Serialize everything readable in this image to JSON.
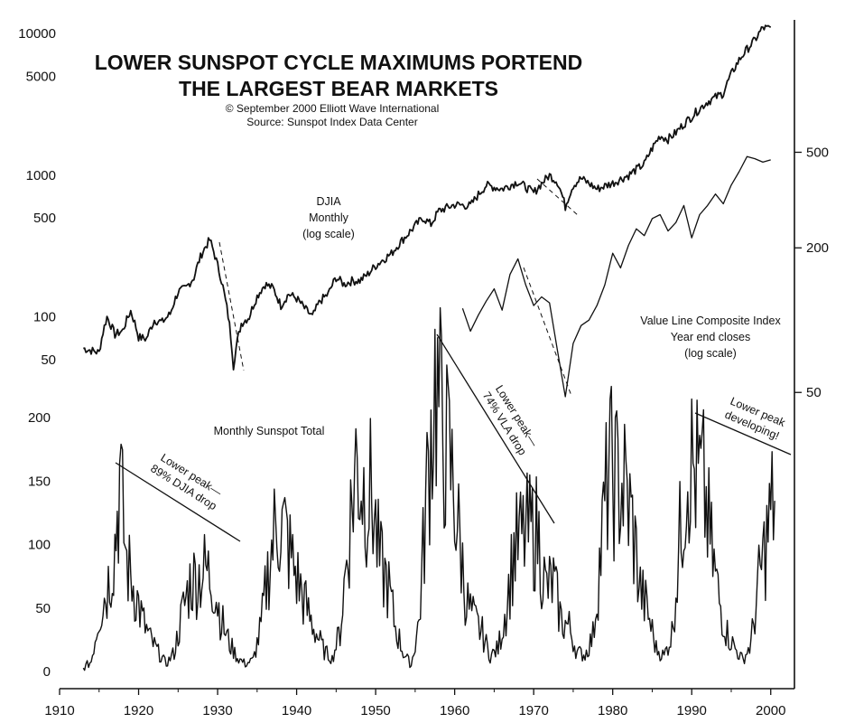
{
  "chart_data": [
    {
      "type": "line",
      "title_lines": [
        "LOWER SUNSPOT CYCLE MAXIMUMS PORTEND",
        "THE LARGEST BEAR MARKETS"
      ],
      "copyright": "© September 2000 Elliott Wave International",
      "source": "Source: Sunspot Index Data Center",
      "x_ticks": [
        "1910",
        "1920",
        "1930",
        "1940",
        "1950",
        "1960",
        "1970",
        "1980",
        "1990",
        "2000"
      ],
      "xlim": [
        1910,
        2003
      ],
      "djia": {
        "label_lines": [
          "DJIA",
          "Monthly",
          "(log scale)"
        ],
        "y_ticks": [
          "10000",
          "5000",
          "1000",
          "500",
          "100",
          "50"
        ],
        "y_tick_values": [
          10000,
          5000,
          1000,
          500,
          100,
          50
        ],
        "ylim": [
          40,
          12500
        ],
        "log_scale": true,
        "x": [
          1913,
          1914,
          1915,
          1916,
          1917,
          1918,
          1919,
          1920,
          1921,
          1922,
          1923,
          1924,
          1925,
          1926,
          1927,
          1928,
          1929,
          1930,
          1931,
          1932,
          1933,
          1934,
          1935,
          1936,
          1937,
          1938,
          1939,
          1940,
          1941,
          1942,
          1943,
          1944,
          1945,
          1946,
          1947,
          1948,
          1949,
          1950,
          1952,
          1954,
          1956,
          1957,
          1958,
          1960,
          1962,
          1964,
          1966,
          1968,
          1970,
          1972,
          1973,
          1974,
          1975,
          1976,
          1978,
          1980,
          1982,
          1984,
          1986,
          1987,
          1988,
          1990,
          1992,
          1994,
          1996,
          1998,
          1999,
          2000
        ],
        "values": [
          60,
          58,
          56,
          100,
          75,
          80,
          110,
          72,
          70,
          95,
          92,
          105,
          150,
          160,
          190,
          280,
          350,
          230,
          130,
          45,
          90,
          100,
          140,
          170,
          160,
          120,
          145,
          135,
          115,
          100,
          130,
          145,
          190,
          170,
          180,
          180,
          200,
          230,
          280,
          380,
          500,
          450,
          560,
          620,
          610,
          850,
          800,
          900,
          750,
          1000,
          900,
          600,
          850,
          950,
          800,
          880,
          1000,
          1200,
          1900,
          1800,
          2000,
          2600,
          3300,
          3800,
          6500,
          9000,
          11000,
          10800
        ]
      },
      "value_line": {
        "label_lines": [
          "Value Line Composite Index",
          "Year end closes",
          "(log scale)"
        ],
        "y_ticks": [
          "500",
          "200",
          "50"
        ],
        "y_tick_values": [
          500,
          200,
          50
        ],
        "ylim": [
          40,
          640
        ],
        "log_scale": true,
        "x": [
          1961,
          1962,
          1963,
          1964,
          1965,
          1966,
          1967,
          1968,
          1969,
          1970,
          1971,
          1972,
          1973,
          1974,
          1975,
          1976,
          1977,
          1978,
          1979,
          1980,
          1981,
          1982,
          1983,
          1984,
          1985,
          1986,
          1987,
          1988,
          1989,
          1990,
          1991,
          1992,
          1993,
          1994,
          1995,
          1996,
          1997,
          1998,
          1999,
          2000
        ],
        "values": [
          112,
          90,
          105,
          120,
          135,
          110,
          155,
          180,
          140,
          115,
          125,
          118,
          75,
          48,
          80,
          95,
          100,
          115,
          140,
          190,
          165,
          205,
          240,
          225,
          265,
          275,
          235,
          255,
          300,
          220,
          275,
          300,
          335,
          305,
          365,
          415,
          480,
          470,
          455,
          465
        ]
      },
      "sunspots": {
        "label": "Monthly Sunspot Total",
        "y_ticks": [
          "200",
          "150",
          "100",
          "50",
          "0"
        ],
        "y_tick_values": [
          200,
          150,
          100,
          50,
          0
        ],
        "ylim": [
          0,
          200
        ],
        "x": [
          1913,
          1914,
          1915,
          1916,
          1917,
          1917.6,
          1918.5,
          1919.5,
          1920.5,
          1921.5,
          1922.5,
          1923.5,
          1924.5,
          1925.5,
          1926.5,
          1927.5,
          1928.5,
          1929.5,
          1930.5,
          1931.5,
          1932.5,
          1933.5,
          1934.5,
          1935.5,
          1936.5,
          1937.5,
          1938.5,
          1939.5,
          1940.5,
          1941.5,
          1942.5,
          1943.5,
          1944.5,
          1945.5,
          1946.5,
          1947.5,
          1948.5,
          1949.5,
          1950.5,
          1951.5,
          1952.5,
          1953.5,
          1954.5,
          1955.5,
          1956.5,
          1957.5,
          1958.5,
          1959.5,
          1960.5,
          1961.5,
          1962.5,
          1963.5,
          1964.5,
          1965.5,
          1966.5,
          1967.5,
          1968.5,
          1969.5,
          1970.5,
          1971.5,
          1972.5,
          1973.5,
          1974.5,
          1975.5,
          1976.5,
          1977.5,
          1978.5,
          1979.5,
          1980.5,
          1981.5,
          1982.5,
          1983.5,
          1984.5,
          1985.5,
          1986.5,
          1987.5,
          1988.5,
          1989.5,
          1990.5,
          1991.5,
          1992.5,
          1993.5,
          1994.5,
          1995.5,
          1996.5,
          1997.5,
          1998.5,
          1999.5,
          2000.5
        ],
        "values": [
          2,
          8,
          45,
          65,
          100,
          150,
          85,
          65,
          40,
          25,
          15,
          6,
          15,
          45,
          70,
          75,
          80,
          70,
          40,
          22,
          11,
          6,
          9,
          35,
          85,
          120,
          110,
          85,
          65,
          45,
          30,
          16,
          10,
          32,
          100,
          165,
          145,
          140,
          85,
          70,
          35,
          15,
          5,
          40,
          145,
          230,
          190,
          160,
          110,
          55,
          40,
          30,
          12,
          18,
          50,
          95,
          105,
          110,
          110,
          65,
          70,
          40,
          35,
          15,
          13,
          28,
          95,
          160,
          150,
          145,
          115,
          65,
          45,
          18,
          12,
          30,
          105,
          170,
          155,
          145,
          95,
          55,
          30,
          18,
          9,
          22,
          70,
          105,
          140
        ]
      },
      "annotations": [
        {
          "lines": [
            "Lower peak—",
            "89% DJIA drop"
          ]
        },
        {
          "lines": [
            "Lower peak—",
            "74% VLA drop"
          ]
        },
        {
          "lines": [
            "Lower peak",
            "developing!"
          ]
        }
      ]
    }
  ]
}
